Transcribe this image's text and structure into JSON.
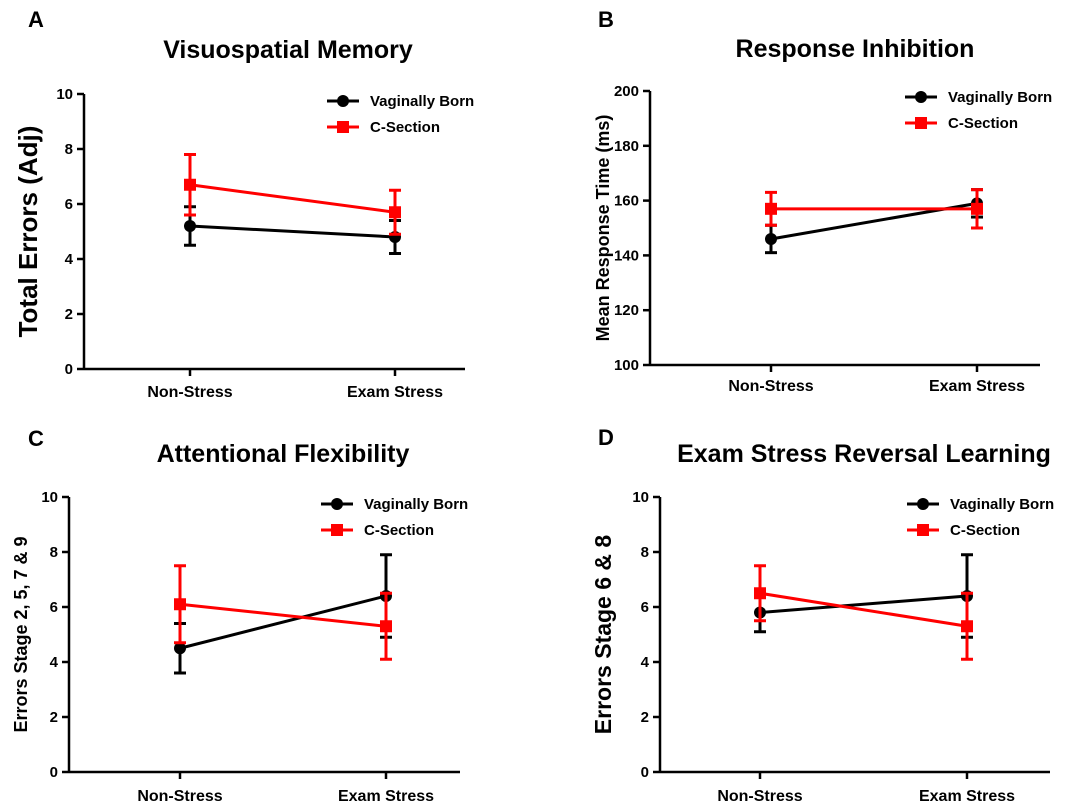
{
  "chart_data": [
    {
      "panel": "A",
      "type": "line",
      "title": "Visuospatial Memory",
      "xlabel": "",
      "ylabel": "Total Errors (Adj)",
      "ylim": [
        0,
        10
      ],
      "yticks": [
        0,
        2,
        4,
        6,
        8,
        10
      ],
      "categories": [
        "Non-Stress",
        "Exam Stress"
      ],
      "legend_position": "top-right",
      "series": [
        {
          "name": "Vaginally Born",
          "color": "#000000",
          "marker": "circle",
          "values": [
            5.2,
            4.8
          ],
          "error": [
            0.7,
            0.6
          ]
        },
        {
          "name": "C-Section",
          "color": "#ff0000",
          "marker": "square",
          "values": [
            6.7,
            5.7
          ],
          "error": [
            1.1,
            0.8
          ]
        }
      ]
    },
    {
      "panel": "B",
      "type": "line",
      "title": "Response Inhibition",
      "xlabel": "",
      "ylabel": "Mean Response Time (ms)",
      "ylim": [
        100,
        200
      ],
      "yticks": [
        100,
        120,
        140,
        160,
        180,
        200
      ],
      "categories": [
        "Non-Stress",
        "Exam Stress"
      ],
      "legend_position": "top-right",
      "series": [
        {
          "name": "Vaginally Born",
          "color": "#000000",
          "marker": "circle",
          "values": [
            146,
            159
          ],
          "error": [
            5,
            5
          ]
        },
        {
          "name": "C-Section",
          "color": "#ff0000",
          "marker": "square",
          "values": [
            157,
            157
          ],
          "error": [
            6,
            7
          ]
        }
      ]
    },
    {
      "panel": "C",
      "type": "line",
      "title": "Attentional Flexibility",
      "xlabel": "",
      "ylabel": "Errors Stage 2, 5, 7 & 9",
      "ylim": [
        0,
        10
      ],
      "yticks": [
        0,
        2,
        4,
        6,
        8,
        10
      ],
      "categories": [
        "Non-Stress",
        "Exam Stress"
      ],
      "legend_position": "top-right",
      "series": [
        {
          "name": "Vaginally Born",
          "color": "#000000",
          "marker": "circle",
          "values": [
            4.5,
            6.4
          ],
          "error": [
            0.9,
            1.5
          ]
        },
        {
          "name": "C-Section",
          "color": "#ff0000",
          "marker": "square",
          "values": [
            6.1,
            5.3
          ],
          "error": [
            1.4,
            1.2
          ]
        }
      ]
    },
    {
      "panel": "D",
      "type": "line",
      "title": "Exam Stress Reversal Learning",
      "xlabel": "",
      "ylabel": "Errors Stage 6 & 8",
      "ylim": [
        0,
        10
      ],
      "yticks": [
        0,
        2,
        4,
        6,
        8,
        10
      ],
      "categories": [
        "Non-Stress",
        "Exam Stress"
      ],
      "legend_position": "top-right",
      "series": [
        {
          "name": "Vaginally Born",
          "color": "#000000",
          "marker": "circle",
          "values": [
            5.8,
            6.4
          ],
          "error": [
            0.7,
            1.5
          ]
        },
        {
          "name": "C-Section",
          "color": "#ff0000",
          "marker": "square",
          "values": [
            6.5,
            5.3
          ],
          "error": [
            1.0,
            1.2
          ]
        }
      ]
    }
  ]
}
